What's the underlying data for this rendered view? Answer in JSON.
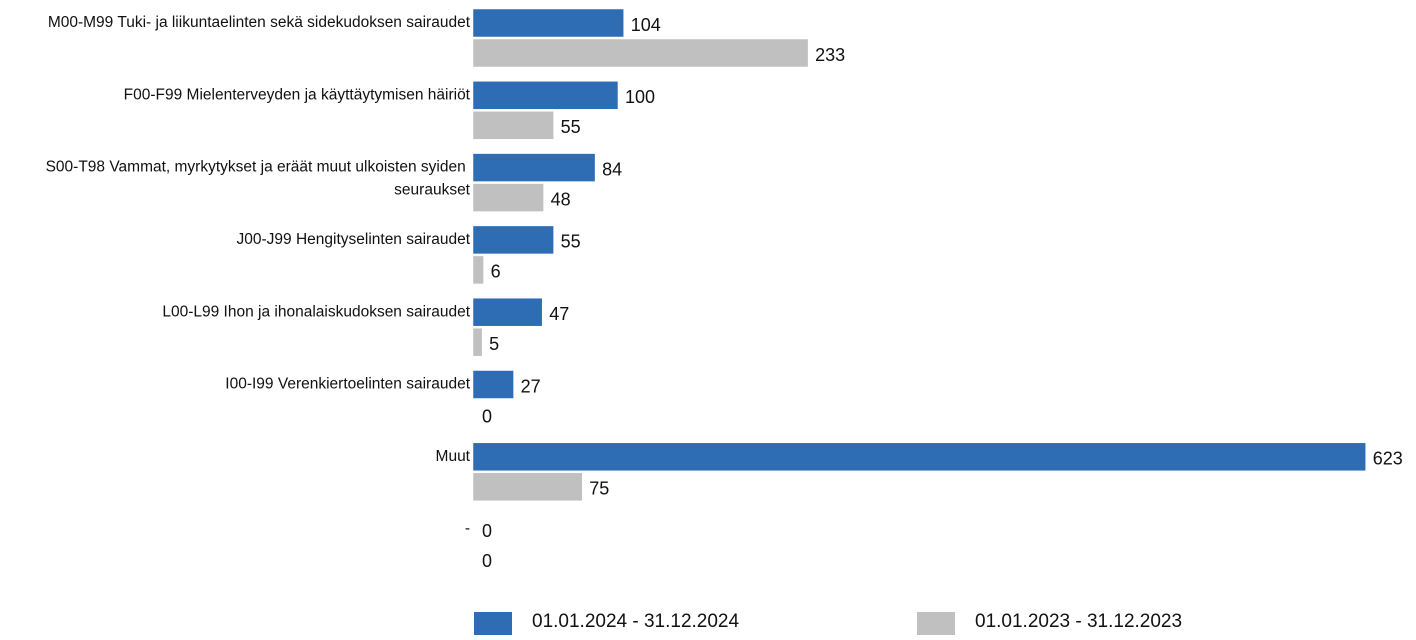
{
  "chart_data": {
    "type": "barh",
    "categories": [
      "M00-M99 Tuki- ja liikuntaelinten sekä sidekudoksen sairaudet",
      "F00-F99 Mielenterveyden ja käyttäytymisen häiriöt",
      "S00-T98 Vammat, myrkytykset ja eräät muut ulkoisten syiden seuraukset",
      "J00-J99 Hengityselinten sairaudet",
      "L00-L99 Ihon ja ihonalaiskudoksen sairaudet",
      "I00-I99 Verenkiertoelinten sairaudet",
      "Muut",
      "-"
    ],
    "series": [
      {
        "name": "01.01.2024 - 31.12.2024",
        "color": "#2e6db4",
        "values": [
          104,
          100,
          84,
          55,
          47,
          27,
          623,
          0
        ]
      },
      {
        "name": "01.01.2023 - 31.12.2023",
        "color": "#c0c0c0",
        "values": [
          233,
          55,
          48,
          6,
          5,
          0,
          75,
          0
        ]
      }
    ],
    "xlim": [
      0,
      640
    ],
    "legend": "bottom"
  }
}
